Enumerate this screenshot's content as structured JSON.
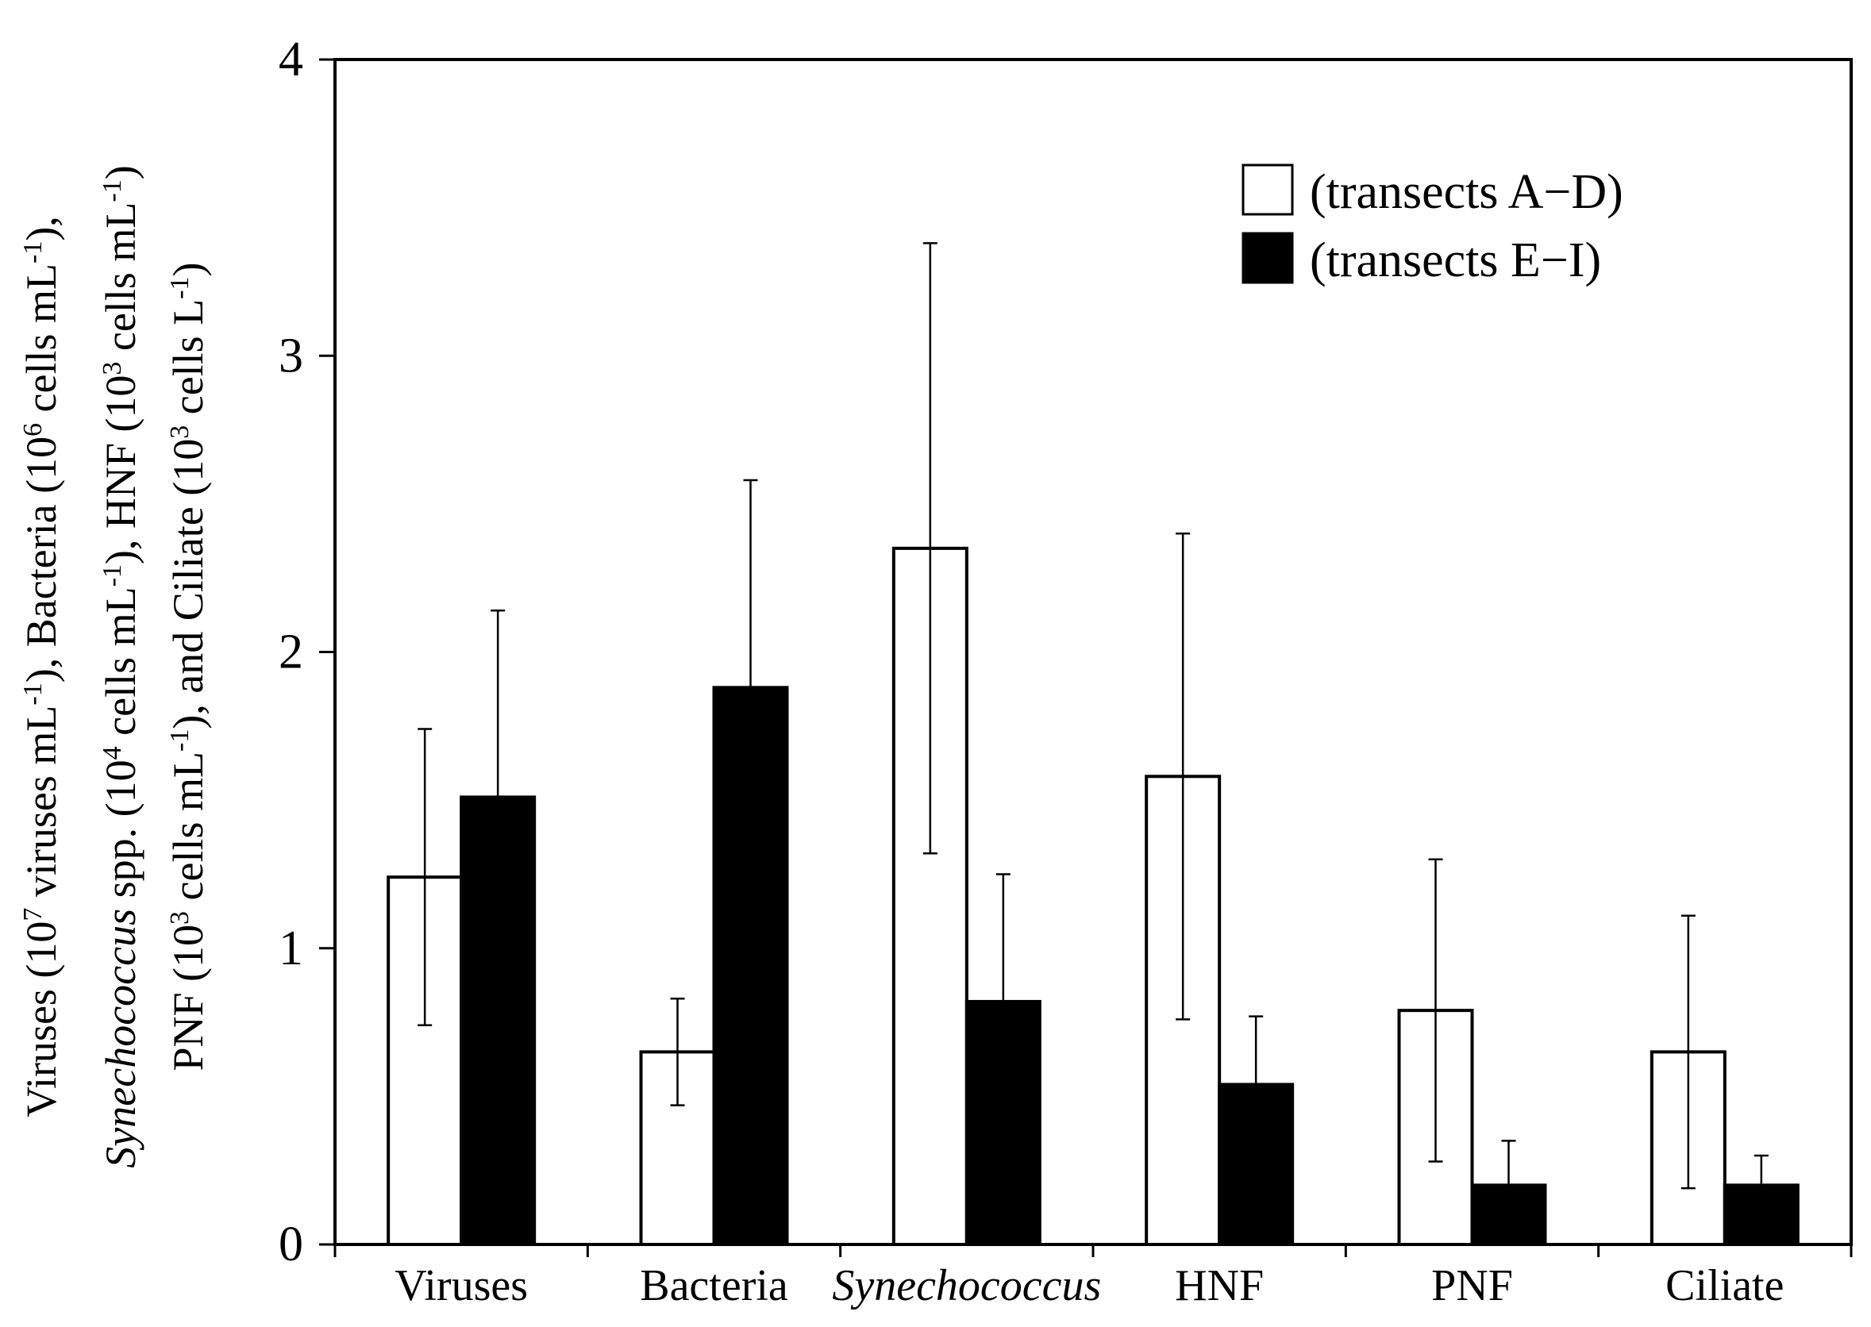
{
  "chart_data": {
    "type": "bar",
    "title": "",
    "xlabel": "",
    "ylabel_lines": [
      [
        {
          "t": "Viruses (10"
        },
        {
          "t": "7",
          "sup": true
        },
        {
          "t": " viruses mL"
        },
        {
          "t": "-1",
          "sup": true
        },
        {
          "t": "),  Bacteria (10"
        },
        {
          "t": "6",
          "sup": true
        },
        {
          "t": " cells mL"
        },
        {
          "t": "-1",
          "sup": true
        },
        {
          "t": "),"
        }
      ],
      [
        {
          "t": "Synechococcus",
          "it": true
        },
        {
          "t": " spp. (10"
        },
        {
          "t": "4",
          "sup": true
        },
        {
          "t": " cells mL"
        },
        {
          "t": "-1",
          "sup": true
        },
        {
          "t": "), HNF (10"
        },
        {
          "t": "3",
          "sup": true
        },
        {
          "t": " cells mL"
        },
        {
          "t": "-1",
          "sup": true
        },
        {
          "t": ")"
        }
      ],
      [
        {
          "t": "PNF (10"
        },
        {
          "t": "3",
          "sup": true
        },
        {
          "t": " cells mL"
        },
        {
          "t": "-1",
          "sup": true
        },
        {
          "t": "), and Ciliate (10"
        },
        {
          "t": "3",
          "sup": true
        },
        {
          "t": " cells L"
        },
        {
          "t": "-1",
          "sup": true
        },
        {
          "t": ")"
        }
      ]
    ],
    "ylim": [
      0,
      4
    ],
    "yticks": [
      0,
      1,
      2,
      3,
      4
    ],
    "grid": false,
    "legend_position": "top-right",
    "categories": [
      {
        "label": "Viruses",
        "italic": false
      },
      {
        "label": "Bacteria",
        "italic": false
      },
      {
        "label": "Synechococcus",
        "italic": true
      },
      {
        "label": "HNF",
        "italic": false
      },
      {
        "label": "PNF",
        "italic": false
      },
      {
        "label": "Ciliate",
        "italic": false
      }
    ],
    "series": [
      {
        "name": "(transects A−D)",
        "fill": "#ffffff",
        "values": [
          1.24,
          0.65,
          2.35,
          1.58,
          0.79,
          0.65
        ],
        "errors": [
          0.5,
          0.18,
          1.03,
          0.82,
          0.51,
          0.46
        ]
      },
      {
        "name": "(transects E−I)",
        "fill": "#000000",
        "values": [
          1.51,
          1.88,
          0.82,
          0.54,
          0.2,
          0.2
        ],
        "errors": [
          0.63,
          0.7,
          0.43,
          0.23,
          0.15,
          0.1
        ]
      }
    ]
  }
}
